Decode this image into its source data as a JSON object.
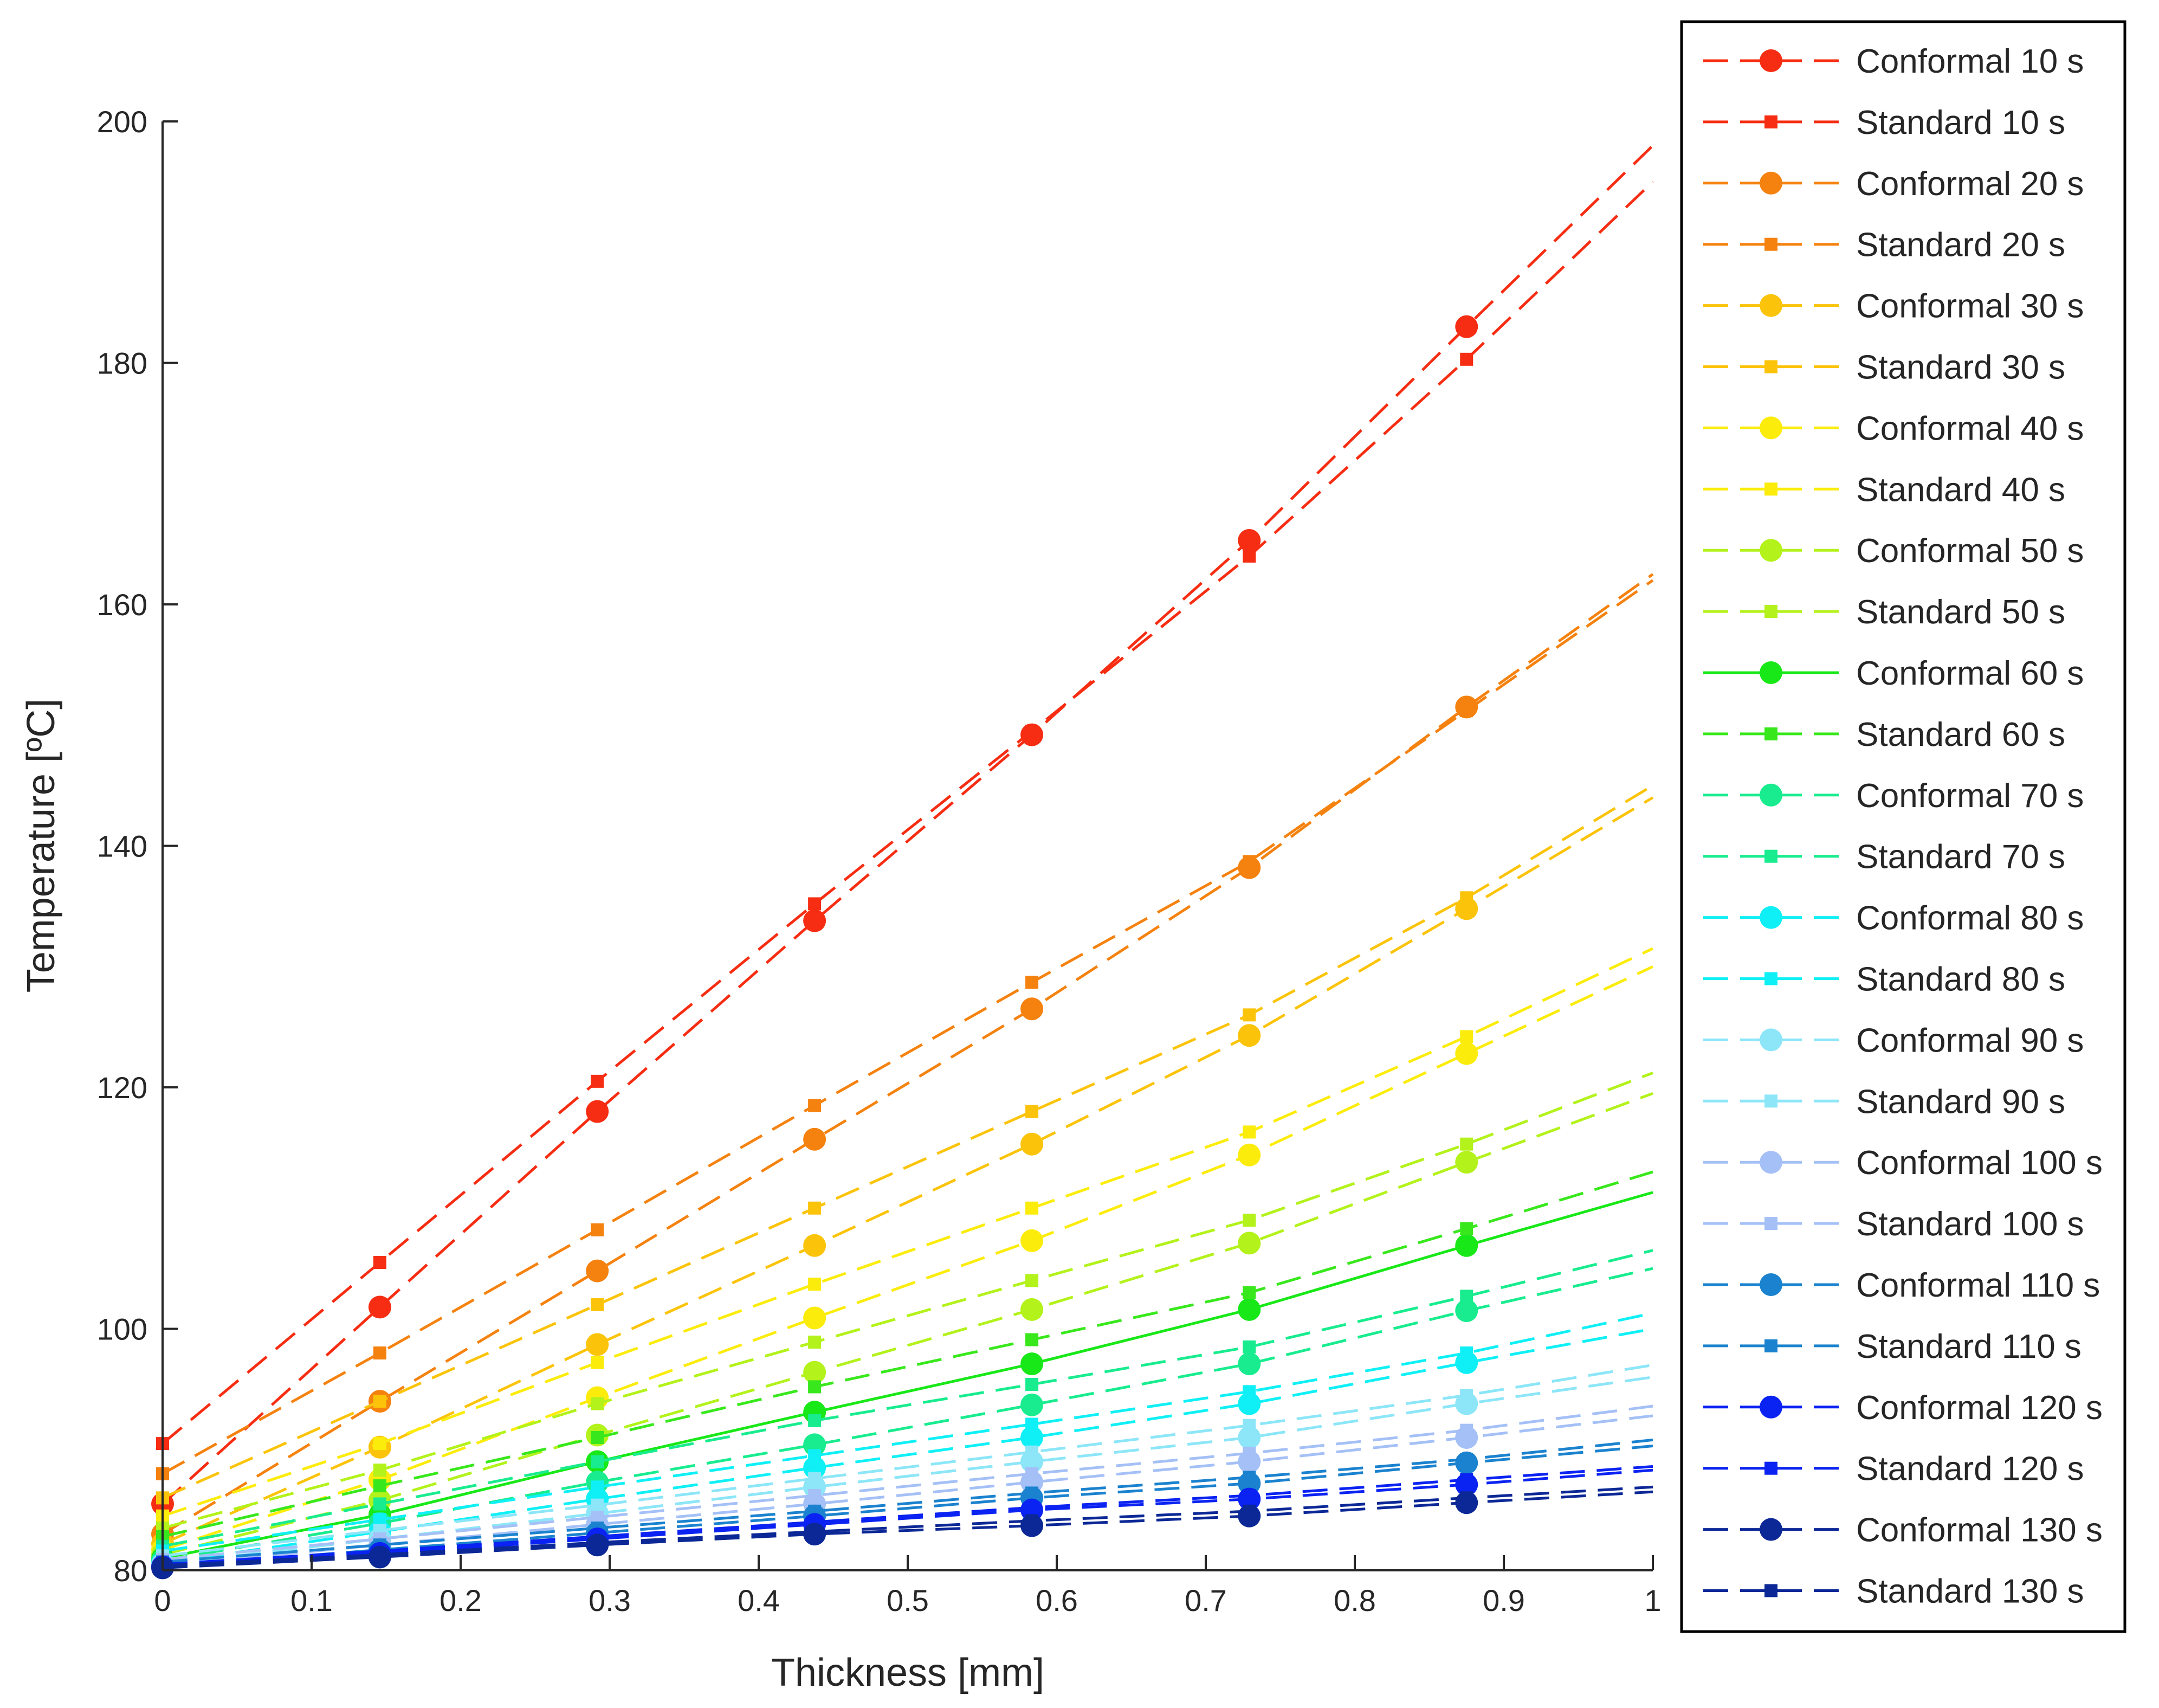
{
  "chart_data": {
    "type": "line",
    "title": "",
    "xlabel": "Thickness [mm]",
    "ylabel": "Temperature [ºC]",
    "xlim": [
      0,
      1
    ],
    "ylim": [
      80,
      200
    ],
    "xticks": [
      0,
      0.1,
      0.2,
      0.3,
      0.4,
      0.5,
      0.6,
      0.7,
      0.8,
      0.9,
      1
    ],
    "xtick_labels": [
      "0",
      "0.1",
      "0.2",
      "0.3",
      "0.4",
      "0.5",
      "0.6",
      "0.7",
      "0.8",
      "0.9",
      "1"
    ],
    "yticks": [
      80,
      100,
      120,
      140,
      160,
      180,
      200
    ],
    "ytick_labels": [
      "80",
      "100",
      "120",
      "140",
      "160",
      "180",
      "200"
    ],
    "grid": false,
    "legend_position": "outside-right",
    "x": [
      0,
      0.1458,
      0.2917,
      0.4375,
      0.5833,
      0.7292,
      0.875,
      1.0
    ],
    "series": [
      {
        "name": "Conformal 10 s",
        "color": "#f62d12",
        "marker": "circle",
        "dash": "dashed",
        "values": [
          85.5,
          101.8,
          118,
          133.8,
          149.2,
          165.3,
          183,
          198
        ]
      },
      {
        "name": "Standard 10 s",
        "color": "#f62d12",
        "marker": "square",
        "dash": "dashed",
        "values": [
          90.5,
          105.5,
          120.5,
          135.2,
          149.5,
          164,
          180.3,
          195
        ]
      },
      {
        "name": "Conformal 20 s",
        "color": "#f5820f",
        "marker": "circle",
        "dash": "dashed",
        "values": [
          83,
          94,
          104.8,
          115.7,
          126.5,
          138.2,
          151.5,
          162.5
        ]
      },
      {
        "name": "Standard 20 s",
        "color": "#f5820f",
        "marker": "square",
        "dash": "dashed",
        "values": [
          88,
          98,
          108.2,
          118.5,
          128.7,
          138.7,
          151.2,
          162
        ]
      },
      {
        "name": "Conformal 30 s",
        "color": "#fbc40b",
        "marker": "circle",
        "dash": "dashed",
        "values": [
          82.2,
          90.2,
          98.7,
          106.9,
          115.3,
          124.3,
          134.8,
          144
        ]
      },
      {
        "name": "Standard 30 s",
        "color": "#fbc40b",
        "marker": "square",
        "dash": "dashed",
        "values": [
          86,
          94,
          102,
          110,
          118,
          126,
          135.7,
          145
        ]
      },
      {
        "name": "Conformal 40 s",
        "color": "#fbec0c",
        "marker": "circle",
        "dash": "dashed",
        "values": [
          81.7,
          87.5,
          94.3,
          100.9,
          107.3,
          114.4,
          122.8,
          130
        ]
      },
      {
        "name": "Standard 40 s",
        "color": "#fbec0c",
        "marker": "square",
        "dash": "dashed",
        "values": [
          84.5,
          90.5,
          97.2,
          103.7,
          110,
          116.3,
          124.2,
          131.5
        ]
      },
      {
        "name": "Conformal 50 s",
        "color": "#b3f21a",
        "marker": "circle",
        "dash": "dashed",
        "values": [
          81.3,
          85.8,
          91.2,
          96.4,
          101.6,
          107.1,
          113.8,
          119.5
        ]
      },
      {
        "name": "Standard 50 s",
        "color": "#b3f21a",
        "marker": "square",
        "dash": "dashed",
        "values": [
          83.5,
          88.3,
          93.8,
          98.9,
          104,
          109,
          115.3,
          121.2
        ]
      },
      {
        "name": "Conformal 60 s",
        "color": "#18e818",
        "marker": "circle",
        "dash": "solid",
        "values": [
          81,
          84.6,
          89,
          93.1,
          97.1,
          101.6,
          106.9,
          111.3
        ]
      },
      {
        "name": "Standard 60 s",
        "color": "#38e81c",
        "marker": "square",
        "dash": "dashed",
        "values": [
          82.8,
          87,
          91,
          95.2,
          99.1,
          103,
          108.3,
          113
        ]
      },
      {
        "name": "Conformal 70 s",
        "color": "#18ec8e",
        "marker": "circle",
        "dash": "dashed",
        "values": [
          80.8,
          83.9,
          87.3,
          90.4,
          93.7,
          97.1,
          101.5,
          105
        ]
      },
      {
        "name": "Standard 70 s",
        "color": "#18ec8e",
        "marker": "square",
        "dash": "dashed",
        "values": [
          82,
          85.5,
          89,
          92.4,
          95.4,
          98.5,
          102.7,
          106.5
        ]
      },
      {
        "name": "Conformal 80 s",
        "color": "#0ff0f6",
        "marker": "circle",
        "dash": "dashed",
        "values": [
          80.6,
          83.2,
          85.9,
          88.5,
          91,
          93.8,
          97.2,
          100
        ]
      },
      {
        "name": "Standard 80 s",
        "color": "#0ff0f6",
        "marker": "square",
        "dash": "dashed",
        "values": [
          81.6,
          84.2,
          86.9,
          89.5,
          92.1,
          94.8,
          98,
          101.3
        ]
      },
      {
        "name": "Conformal 90 s",
        "color": "#8ce6f8",
        "marker": "circle",
        "dash": "dashed",
        "values": [
          80.5,
          82.6,
          84.7,
          86.9,
          89,
          91,
          93.8,
          96
        ]
      },
      {
        "name": "Standard 90 s",
        "color": "#8ce6f8",
        "marker": "square",
        "dash": "dashed",
        "values": [
          81.2,
          83.3,
          85.4,
          87.6,
          89.8,
          92,
          94.5,
          97
        ]
      },
      {
        "name": "Conformal 100 s",
        "color": "#a4c0f6",
        "marker": "circle",
        "dash": "dashed",
        "values": [
          80.4,
          82.1,
          83.8,
          85.5,
          87.3,
          89,
          91,
          92.8
        ]
      },
      {
        "name": "Standard 100 s",
        "color": "#a4c0f6",
        "marker": "square",
        "dash": "dashed",
        "values": [
          80.9,
          82.6,
          84.4,
          86.2,
          88,
          89.7,
          91.6,
          93.6
        ]
      },
      {
        "name": "Conformal 110 s",
        "color": "#1a82ce",
        "marker": "circle",
        "dash": "dashed",
        "values": [
          80.3,
          81.7,
          83.1,
          84.5,
          86,
          87.2,
          88.9,
          90.3
        ]
      },
      {
        "name": "Standard 110 s",
        "color": "#1a82ce",
        "marker": "square",
        "dash": "dashed",
        "values": [
          80.7,
          82.1,
          83.5,
          84.9,
          86.4,
          87.7,
          89.2,
          90.8
        ]
      },
      {
        "name": "Conformal 120 s",
        "color": "#0a22f2",
        "marker": "circle",
        "dash": "dashed",
        "values": [
          80.3,
          81.4,
          82.6,
          83.8,
          85,
          85.9,
          87.1,
          88.3
        ]
      },
      {
        "name": "Standard 120 s",
        "color": "#0a22f2",
        "marker": "square",
        "dash": "dashed",
        "values": [
          80.5,
          81.6,
          82.8,
          84,
          85.2,
          86.2,
          87.5,
          88.6
        ]
      },
      {
        "name": "Conformal 130 s",
        "color": "#0c2896",
        "marker": "circle",
        "dash": "dashed",
        "values": [
          80.2,
          81.1,
          82.1,
          83,
          83.7,
          84.5,
          85.6,
          86.5
        ]
      },
      {
        "name": "Standard 130 s",
        "color": "#0c2896",
        "marker": "square",
        "dash": "dashed",
        "values": [
          80.4,
          81.3,
          82.3,
          83.2,
          84.1,
          84.9,
          86,
          86.9
        ]
      }
    ]
  }
}
